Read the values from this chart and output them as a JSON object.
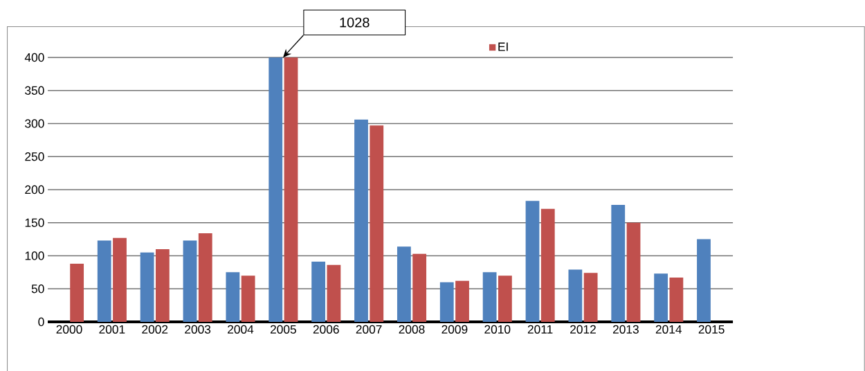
{
  "chart_data": {
    "type": "bar",
    "categories": [
      "2000",
      "2001",
      "2002",
      "2003",
      "2004",
      "2005",
      "2006",
      "2007",
      "2008",
      "2009",
      "2010",
      "2011",
      "2012",
      "2013",
      "2014",
      "2015"
    ],
    "series": [
      {
        "color": "#4f81bd",
        "values": [
          null,
          123,
          105,
          123,
          75,
          400,
          91,
          306,
          114,
          60,
          75,
          183,
          79,
          177,
          73,
          125
        ]
      },
      {
        "name": "EI",
        "color": "#c0504d",
        "values": [
          88,
          127,
          110,
          134,
          70,
          400,
          86,
          297,
          103,
          62,
          70,
          171,
          74,
          150,
          67,
          null
        ]
      }
    ],
    "ylim": [
      0,
      400
    ],
    "yticks": [
      0,
      50,
      100,
      150,
      200,
      250,
      300,
      350,
      400
    ],
    "grid": "y",
    "legend": "top right",
    "annotations": [
      "1028"
    ]
  }
}
